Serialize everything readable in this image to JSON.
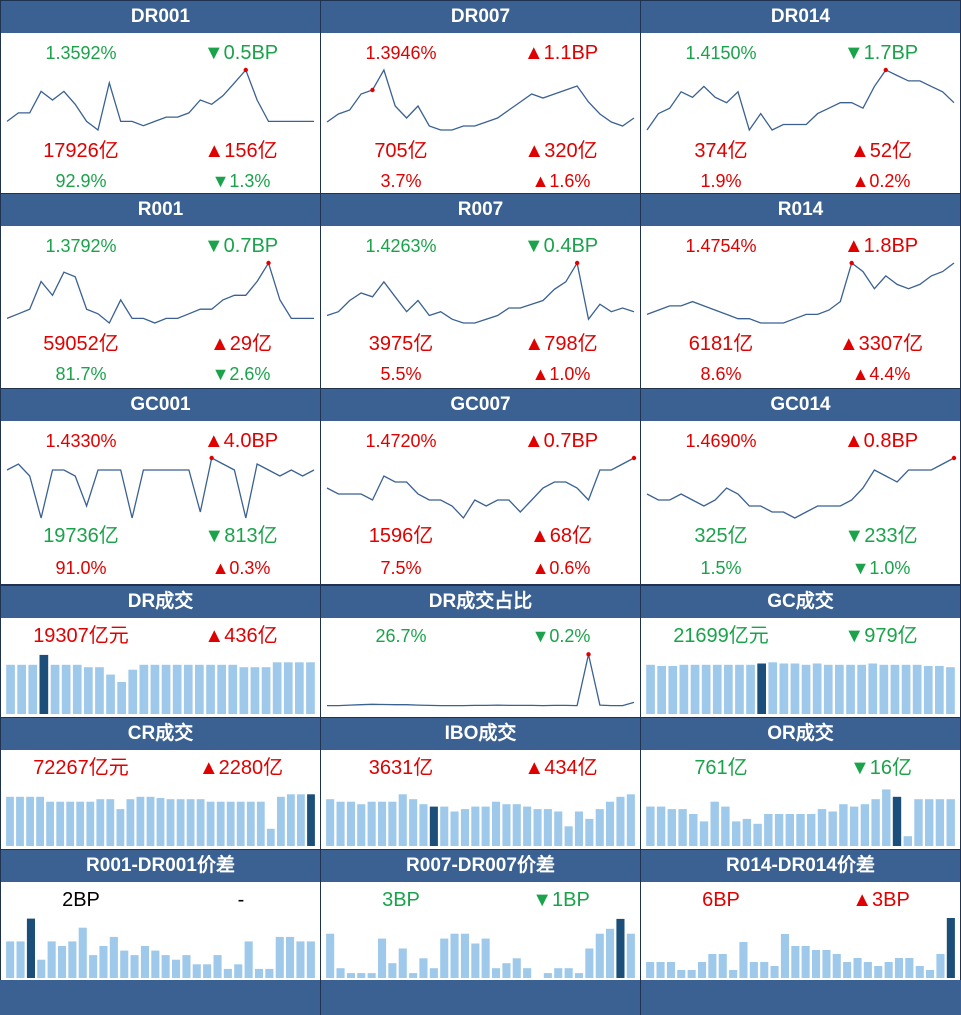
{
  "colors": {
    "header": "#3a6192",
    "up": "#e00000",
    "down": "#1aa34a",
    "line": "#3a6192",
    "bar": "#9ec9ea",
    "bar_highlight": "#1b4f7a",
    "dot": "#e00000"
  },
  "rate_panels": [
    {
      "title": "DR001",
      "rate": "1.3592%",
      "rate_dir": "down",
      "bp": "▼0.5BP",
      "bp_dir": "down",
      "vol": "17926亿",
      "vol_dir": "up",
      "vol_chg": "▲156亿",
      "vol_chg_dir": "up",
      "share": "92.9%",
      "share_dir": "down",
      "share_chg": "▼1.3%",
      "share_chg_dir": "down",
      "chart_data": {
        "type": "line",
        "values": [
          1.31,
          1.33,
          1.33,
          1.38,
          1.36,
          1.38,
          1.35,
          1.31,
          1.29,
          1.4,
          1.31,
          1.31,
          1.3,
          1.31,
          1.32,
          1.32,
          1.33,
          1.36,
          1.35,
          1.37,
          1.4,
          1.43,
          1.36,
          1.31,
          1.31,
          1.31,
          1.31,
          1.31
        ],
        "highlight_index": 21
      }
    },
    {
      "title": "DR007",
      "rate": "1.3946%",
      "rate_dir": "up",
      "bp": "▲1.1BP",
      "bp_dir": "up",
      "vol": "705亿",
      "vol_dir": "up",
      "vol_chg": "▲320亿",
      "vol_chg_dir": "up",
      "share": "3.7%",
      "share_dir": "up",
      "share_chg": "▲1.6%",
      "share_chg_dir": "up",
      "chart_data": {
        "type": "line",
        "values": [
          1.31,
          1.33,
          1.34,
          1.38,
          1.39,
          1.44,
          1.35,
          1.32,
          1.35,
          1.3,
          1.29,
          1.29,
          1.3,
          1.3,
          1.31,
          1.32,
          1.34,
          1.36,
          1.38,
          1.37,
          1.38,
          1.39,
          1.4,
          1.36,
          1.33,
          1.31,
          1.3,
          1.32
        ],
        "highlight_index": 4
      }
    },
    {
      "title": "DR014",
      "rate": "1.4150%",
      "rate_dir": "down",
      "bp": "▼1.7BP",
      "bp_dir": "down",
      "vol": "374亿",
      "vol_dir": "up",
      "vol_chg": "▲52亿",
      "vol_chg_dir": "up",
      "share": "1.9%",
      "share_dir": "up",
      "share_chg": "▲0.2%",
      "share_chg_dir": "up",
      "chart_data": {
        "type": "line",
        "values": [
          1.3,
          1.33,
          1.34,
          1.37,
          1.36,
          1.38,
          1.36,
          1.35,
          1.37,
          1.3,
          1.33,
          1.3,
          1.31,
          1.31,
          1.31,
          1.33,
          1.34,
          1.35,
          1.35,
          1.34,
          1.38,
          1.41,
          1.4,
          1.39,
          1.39,
          1.38,
          1.37,
          1.35
        ],
        "highlight_index": 21
      }
    },
    {
      "title": "R001",
      "rate": "1.3792%",
      "rate_dir": "down",
      "bp": "▼0.7BP",
      "bp_dir": "down",
      "vol": "59052亿",
      "vol_dir": "up",
      "vol_chg": "▲29亿",
      "vol_chg_dir": "up",
      "share": "81.7%",
      "share_dir": "down",
      "share_chg": "▼2.6%",
      "share_chg_dir": "down",
      "chart_data": {
        "type": "line",
        "values": [
          1.32,
          1.33,
          1.34,
          1.4,
          1.37,
          1.42,
          1.41,
          1.34,
          1.33,
          1.31,
          1.36,
          1.32,
          1.32,
          1.31,
          1.32,
          1.32,
          1.33,
          1.34,
          1.34,
          1.36,
          1.37,
          1.37,
          1.4,
          1.44,
          1.36,
          1.32,
          1.32,
          1.32
        ],
        "highlight_index": 23
      }
    },
    {
      "title": "R007",
      "rate": "1.4263%",
      "rate_dir": "green",
      "bp": "▼0.4BP",
      "bp_dir": "down",
      "vol": "3975亿",
      "vol_dir": "up",
      "vol_chg": "▲798亿",
      "vol_chg_dir": "up",
      "share": "5.5%",
      "share_dir": "up",
      "share_chg": "▲1.0%",
      "share_chg_dir": "up",
      "chart_data": {
        "type": "line",
        "values": [
          1.33,
          1.34,
          1.37,
          1.39,
          1.38,
          1.42,
          1.38,
          1.34,
          1.37,
          1.33,
          1.34,
          1.32,
          1.31,
          1.31,
          1.32,
          1.33,
          1.35,
          1.35,
          1.36,
          1.37,
          1.4,
          1.42,
          1.47,
          1.32,
          1.36,
          1.34,
          1.35,
          1.34
        ],
        "highlight_index": 22
      }
    },
    {
      "title": "R014",
      "rate": "1.4754%",
      "rate_dir": "up",
      "bp": "▲1.8BP",
      "bp_dir": "up",
      "vol": "6181亿",
      "vol_dir": "up",
      "vol_chg": "▲3307亿",
      "vol_chg_dir": "up",
      "share": "8.6%",
      "share_dir": "up",
      "share_chg": "▲4.4%",
      "share_chg_dir": "up",
      "chart_data": {
        "type": "line",
        "values": [
          1.35,
          1.36,
          1.37,
          1.37,
          1.38,
          1.37,
          1.36,
          1.35,
          1.34,
          1.34,
          1.33,
          1.33,
          1.33,
          1.34,
          1.35,
          1.35,
          1.36,
          1.38,
          1.47,
          1.45,
          1.41,
          1.44,
          1.42,
          1.41,
          1.42,
          1.44,
          1.45,
          1.47
        ],
        "highlight_index": 18
      }
    },
    {
      "title": "GC001",
      "rate": "1.4330%",
      "rate_dir": "up",
      "bp": "▲4.0BP",
      "bp_dir": "up",
      "vol": "19736亿",
      "vol_dir": "down",
      "vol_chg": "▼813亿",
      "vol_chg_dir": "down",
      "share": "91.0%",
      "share_dir": "up",
      "share_chg": "▲0.3%",
      "share_chg_dir": "up",
      "chart_data": {
        "type": "line",
        "values": [
          1.41,
          1.42,
          1.4,
          1.33,
          1.41,
          1.41,
          1.4,
          1.35,
          1.41,
          1.41,
          1.41,
          1.33,
          1.41,
          1.41,
          1.41,
          1.41,
          1.41,
          1.34,
          1.43,
          1.42,
          1.41,
          1.33,
          1.42,
          1.41,
          1.4,
          1.41,
          1.4,
          1.41
        ],
        "highlight_index": 18
      }
    },
    {
      "title": "GC007",
      "rate": "1.4720%",
      "rate_dir": "up",
      "bp": "▲0.7BP",
      "bp_dir": "up",
      "vol": "1596亿",
      "vol_dir": "up",
      "vol_chg": "▲68亿",
      "vol_chg_dir": "up",
      "share": "7.5%",
      "share_dir": "up",
      "share_chg": "▲0.6%",
      "share_chg_dir": "up",
      "chart_data": {
        "type": "line",
        "values": [
          1.4,
          1.39,
          1.39,
          1.39,
          1.38,
          1.42,
          1.41,
          1.41,
          1.39,
          1.38,
          1.38,
          1.37,
          1.35,
          1.38,
          1.37,
          1.38,
          1.38,
          1.36,
          1.38,
          1.4,
          1.41,
          1.41,
          1.4,
          1.38,
          1.43,
          1.43,
          1.44,
          1.45
        ],
        "highlight_index": 27
      }
    },
    {
      "title": "GC014",
      "rate": "1.4690%",
      "rate_dir": "up",
      "bp": "▲0.8BP",
      "bp_dir": "up",
      "vol": "325亿",
      "vol_dir": "down",
      "vol_chg": "▼233亿",
      "vol_chg_dir": "down",
      "share": "1.5%",
      "share_dir": "down",
      "share_chg": "▼1.0%",
      "share_chg_dir": "down",
      "chart_data": {
        "type": "line",
        "values": [
          1.4,
          1.39,
          1.39,
          1.4,
          1.39,
          1.38,
          1.39,
          1.41,
          1.4,
          1.38,
          1.38,
          1.37,
          1.37,
          1.36,
          1.37,
          1.38,
          1.38,
          1.38,
          1.39,
          1.41,
          1.44,
          1.43,
          1.42,
          1.44,
          1.44,
          1.44,
          1.45,
          1.46
        ],
        "highlight_index": 27
      }
    }
  ],
  "volume_panels": [
    {
      "title": "DR成交",
      "kind": "bar",
      "v1": "19307亿元",
      "v1_dir": "up",
      "v2": "▲436亿",
      "v2_dir": "up",
      "chart_data": {
        "type": "bar",
        "values": [
          20,
          20,
          20,
          24,
          20,
          20,
          20,
          19,
          19,
          16,
          13,
          18,
          20,
          20,
          20,
          20,
          20,
          20,
          20,
          20,
          20,
          19,
          19,
          19,
          21,
          21,
          21,
          21
        ],
        "highlight_index": 3,
        "ymax": 26
      }
    },
    {
      "title": "DR成交占比",
      "kind": "line",
      "v1": "26.7%",
      "v1_dir": "down",
      "v2": "▼0.2%",
      "v2_dir": "down",
      "chart_data": {
        "type": "line",
        "values": [
          3.0,
          3.0,
          3.2,
          3.4,
          3.6,
          3.5,
          3.4,
          3.4,
          3.2,
          3.1,
          3.0,
          3.0,
          3.0,
          3.1,
          3.1,
          3.2,
          3.1,
          3.1,
          3.1,
          3.0,
          3.1,
          3.1,
          3.0,
          26.9,
          3.2,
          3.0,
          3.0,
          4.5
        ],
        "highlight_index": 23,
        "ymax": 28
      }
    },
    {
      "title": "GC成交",
      "kind": "bar",
      "v1": "21699亿元",
      "v1_dir": "down",
      "v2": "▼979亿",
      "v2_dir": "down",
      "chart_data": {
        "type": "bar",
        "values": [
          20,
          19.5,
          19.5,
          20,
          20,
          20,
          20,
          20,
          20,
          20,
          20.5,
          21,
          20.5,
          20.5,
          20,
          20.5,
          20,
          20,
          20,
          20,
          20.5,
          20,
          20,
          20,
          20,
          19.5,
          19.5,
          19
        ],
        "highlight_index": 10,
        "ymax": 26
      }
    },
    {
      "title": "CR成交",
      "kind": "bar",
      "v1": "72267亿元",
      "v1_dir": "up",
      "v2": "▲2280亿",
      "v2_dir": "up",
      "chart_data": {
        "type": "bar",
        "values": [
          20,
          20,
          20,
          20,
          18,
          18,
          18,
          18,
          18,
          19,
          19,
          15,
          19,
          20,
          20,
          19.5,
          19,
          19,
          19,
          19,
          18,
          18,
          18,
          18,
          18,
          18,
          7,
          20,
          21,
          21,
          21
        ],
        "highlight_index": 30,
        "ymax": 26
      }
    },
    {
      "title": "IBO成交",
      "kind": "bar",
      "v1": "3631亿",
      "v1_dir": "up",
      "v2": "▲434亿",
      "v2_dir": "up",
      "chart_data": {
        "type": "bar",
        "values": [
          19,
          18,
          18,
          17,
          18,
          18,
          18,
          21,
          19,
          17,
          16,
          16,
          14,
          15,
          16,
          16,
          18,
          17,
          17,
          16,
          15,
          15,
          14,
          8,
          14,
          11,
          15,
          18,
          20,
          21
        ],
        "highlight_index": 10,
        "ymax": 26
      }
    },
    {
      "title": "OR成交",
      "kind": "bar",
      "v1": "761亿",
      "v1_dir": "down",
      "v2": "▼16亿",
      "v2_dir": "down",
      "chart_data": {
        "type": "bar",
        "values": [
          16,
          16,
          15,
          15,
          13,
          10,
          18,
          16,
          10,
          11,
          9,
          13,
          13,
          13,
          13,
          13,
          15,
          14,
          17,
          16,
          17,
          19,
          23,
          20,
          4,
          19,
          19,
          19,
          19
        ],
        "highlight_index": 23,
        "ymax": 26
      }
    },
    {
      "title": "R001-DR001价差",
      "kind": "bar",
      "v1": "2BP",
      "v1_dir": "black",
      "v2": "-",
      "v2_dir": "black",
      "chart_data": {
        "type": "bar",
        "values": [
          8,
          8,
          13,
          4,
          8,
          7,
          8,
          11,
          5,
          7,
          9,
          6,
          5,
          7,
          6,
          5,
          4,
          5,
          3,
          3,
          5,
          2,
          3,
          8,
          2,
          2,
          9,
          9,
          8,
          8
        ],
        "highlight_index": 2,
        "ymax": 14
      }
    },
    {
      "title": "R007-DR007价差",
      "kind": "bar",
      "v1": "3BP",
      "v1_dir": "down",
      "v2": "▼1BP",
      "v2_dir": "down",
      "chart_data": {
        "type": "bar",
        "values": [
          9,
          2,
          1,
          1,
          1,
          8,
          3,
          6,
          1,
          4,
          2,
          8,
          9,
          9,
          7,
          8,
          2,
          3,
          4,
          2,
          0,
          1,
          2,
          2,
          1,
          6,
          9,
          10,
          12,
          9
        ],
        "highlight_index": 28,
        "ymax": 13
      }
    },
    {
      "title": "R014-DR014价差",
      "kind": "bar",
      "v1": "6BP",
      "v1_dir": "up",
      "v2": "▲3BP",
      "v2_dir": "up",
      "chart_data": {
        "type": "bar",
        "values": [
          4,
          4,
          4,
          2,
          2,
          4,
          6,
          6,
          2,
          9,
          4,
          4,
          3,
          11,
          8,
          8,
          7,
          7,
          6,
          4,
          5,
          4,
          3,
          4,
          5,
          5,
          3,
          2,
          6,
          15
        ],
        "highlight_index": 29,
        "ymax": 16
      }
    }
  ]
}
